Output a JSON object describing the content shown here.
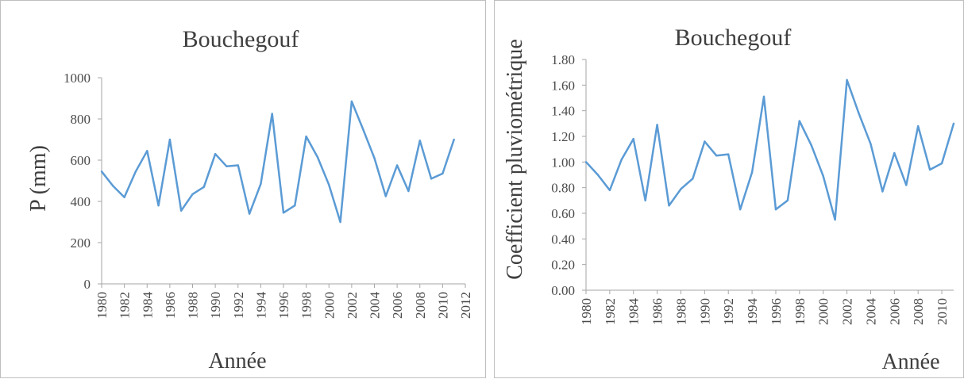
{
  "chart_data": [
    {
      "type": "line",
      "title": "Bouchegouf",
      "xlabel": "Année",
      "ylabel": "P (mm)",
      "ylim": [
        0,
        1000
      ],
      "xlim": [
        1980,
        2012
      ],
      "yticks": [
        "0",
        "200",
        "400",
        "600",
        "800",
        "1000"
      ],
      "xticks": [
        "1980",
        "1982",
        "1984",
        "1986",
        "1988",
        "1990",
        "1992",
        "1994",
        "1996",
        "1998",
        "2000",
        "2002",
        "2004",
        "2006",
        "2008",
        "2010",
        "2012"
      ],
      "grid": false,
      "series": [
        {
          "color": "#5b9bd5",
          "x": [
            1980,
            1981,
            1982,
            1983,
            1984,
            1985,
            1986,
            1987,
            1988,
            1989,
            1990,
            1991,
            1992,
            1993,
            1994,
            1995,
            1996,
            1997,
            1998,
            1999,
            2000,
            2001,
            2002,
            2003,
            2004,
            2005,
            2006,
            2007,
            2008,
            2009,
            2010,
            2011
          ],
          "y": [
            545,
            475,
            420,
            545,
            645,
            380,
            700,
            355,
            435,
            470,
            630,
            570,
            575,
            340,
            485,
            825,
            345,
            380,
            715,
            615,
            480,
            300,
            885,
            750,
            610,
            425,
            575,
            450,
            695,
            510,
            535,
            700
          ]
        }
      ]
    },
    {
      "type": "line",
      "title": "Bouchegouf",
      "xlabel": "Année",
      "ylabel": "Coefficient pluviométrique",
      "ylim": [
        0,
        1.8
      ],
      "xlim": [
        1980,
        2011
      ],
      "yticks": [
        "0.00",
        "0.20",
        "0.40",
        "0.60",
        "0.80",
        "1.00",
        "1.20",
        "1.40",
        "1.60",
        "1.80"
      ],
      "xticks": [
        "1980",
        "1982",
        "1984",
        "1986",
        "1988",
        "1990",
        "1992",
        "1994",
        "1996",
        "1998",
        "2000",
        "2002",
        "2004",
        "2006",
        "2008",
        "2010"
      ],
      "grid": false,
      "series": [
        {
          "color": "#5b9bd5",
          "x": [
            1980,
            1981,
            1982,
            1983,
            1984,
            1985,
            1986,
            1987,
            1988,
            1989,
            1990,
            1991,
            1992,
            1993,
            1994,
            1995,
            1996,
            1997,
            1998,
            1999,
            2000,
            2001,
            2002,
            2003,
            2004,
            2005,
            2006,
            2007,
            2008,
            2009,
            2010,
            2011
          ],
          "y": [
            1.0,
            0.9,
            0.78,
            1.02,
            1.18,
            0.7,
            1.29,
            0.66,
            0.79,
            0.87,
            1.16,
            1.05,
            1.06,
            0.63,
            0.92,
            1.51,
            0.63,
            0.7,
            1.32,
            1.13,
            0.89,
            0.55,
            1.64,
            1.38,
            1.14,
            0.77,
            1.07,
            0.82,
            1.28,
            0.94,
            0.99,
            1.3
          ]
        }
      ]
    }
  ]
}
